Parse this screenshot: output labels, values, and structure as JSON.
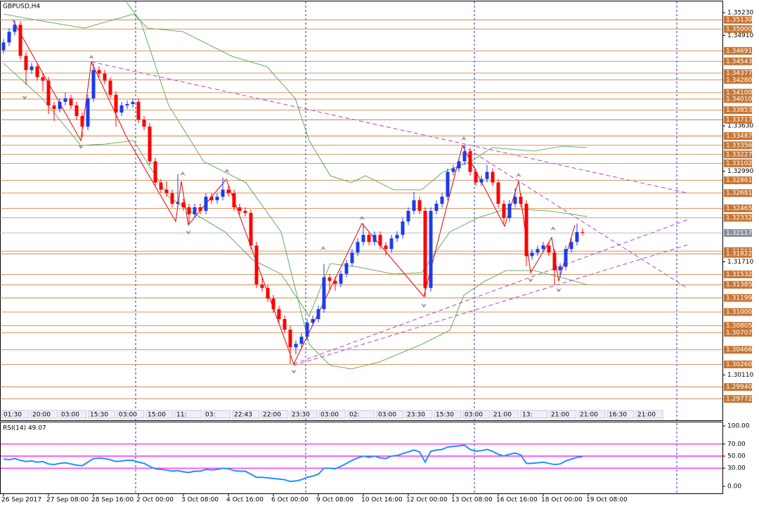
{
  "chart_data": {
    "type": "candlestick",
    "title": "GBPUSD,H4",
    "x": [
      "26 Sep 2017",
      null,
      null,
      null,
      null,
      null,
      null,
      null,
      "27 Sep 08:00",
      null,
      null,
      null,
      null,
      null,
      null,
      null,
      "28 Sep 16:00",
      null,
      null,
      null,
      null,
      null,
      null,
      null,
      "2 Oct 00:00",
      null,
      null,
      null,
      null,
      null,
      null,
      null,
      "3 Oct 08:00",
      null,
      null,
      null,
      null,
      null,
      null,
      null,
      "4 Oct 16:00",
      null,
      null,
      null,
      null,
      null,
      null,
      null,
      "6 Oct 00:00",
      null,
      null,
      null,
      null,
      null,
      null,
      null,
      "9 Oct 08:00",
      null,
      null,
      null,
      null,
      null,
      null,
      null,
      "10 Oct 16:00",
      null,
      null,
      null,
      null,
      null,
      null,
      null,
      "12 Oct 00:00",
      null,
      null,
      null,
      null,
      null,
      null,
      null,
      "13 Oct 08:00",
      null,
      null,
      null,
      null,
      null,
      null,
      null,
      "16 Oct 16:00",
      null,
      null,
      null,
      null,
      null,
      null,
      null,
      "18 Oct 00:00",
      null,
      null,
      null,
      null,
      null,
      null,
      null,
      "19 Oct 08:00",
      null,
      null,
      null
    ],
    "candles": [
      [
        1.347,
        1.3486,
        1.3465,
        1.3481
      ],
      [
        1.3481,
        1.3501,
        1.3476,
        1.3496
      ],
      [
        1.3496,
        1.3512,
        1.3491,
        1.3506
      ],
      [
        1.3506,
        1.3511,
        1.3457,
        1.3462
      ],
      [
        1.3462,
        1.3467,
        1.3421,
        1.3442
      ],
      [
        1.3442,
        1.3452,
        1.3437,
        1.3447
      ],
      [
        1.3447,
        1.3452,
        1.3427,
        1.3432
      ],
      [
        1.3432,
        1.3437,
        1.3412,
        1.3427
      ],
      [
        1.3427,
        1.3432,
        1.338,
        1.3392
      ],
      [
        1.3392,
        1.3397,
        1.337,
        1.3387
      ],
      [
        1.3387,
        1.3402,
        1.3382,
        1.3397
      ],
      [
        1.3397,
        1.341,
        1.3392,
        1.3402
      ],
      [
        1.3402,
        1.3407,
        1.3387,
        1.3392
      ],
      [
        1.3392,
        1.3397,
        1.3372,
        1.3377
      ],
      [
        1.3377,
        1.3382,
        1.3347,
        1.3362
      ],
      [
        1.3362,
        1.3407,
        1.3357,
        1.3402
      ],
      [
        1.3402,
        1.3451,
        1.3397,
        1.3442
      ],
      [
        1.3442,
        1.3447,
        1.3432,
        1.3437
      ],
      [
        1.3437,
        1.3442,
        1.3422,
        1.3427
      ],
      [
        1.3427,
        1.3432,
        1.3402,
        1.3407
      ],
      [
        1.3407,
        1.3412,
        1.3362,
        1.3382
      ],
      [
        1.3382,
        1.3397,
        1.3377,
        1.3392
      ],
      [
        1.3392,
        1.3399,
        1.3387,
        1.3394
      ],
      [
        1.3394,
        1.3402,
        1.3389,
        1.3397
      ],
      [
        1.3397,
        1.3402,
        1.3367,
        1.3372
      ],
      [
        1.3372,
        1.3377,
        1.3357,
        1.3362
      ],
      [
        1.3362,
        1.3367,
        1.3308,
        1.3313
      ],
      [
        1.3313,
        1.3318,
        1.3278,
        1.3283
      ],
      [
        1.3283,
        1.3288,
        1.3268,
        1.3273
      ],
      [
        1.3273,
        1.3285,
        1.3263,
        1.3268
      ],
      [
        1.3268,
        1.3273,
        1.3248,
        1.3253
      ],
      [
        1.3253,
        1.3295,
        1.3248,
        1.3255
      ],
      [
        1.3255,
        1.326,
        1.3243,
        1.3248
      ],
      [
        1.3248,
        1.3253,
        1.3225,
        1.3238
      ],
      [
        1.3238,
        1.3253,
        1.3233,
        1.3248
      ],
      [
        1.3248,
        1.3253,
        1.3238,
        1.3243
      ],
      [
        1.3243,
        1.3268,
        1.3238,
        1.3263
      ],
      [
        1.3263,
        1.3268,
        1.3253,
        1.3258
      ],
      [
        1.3258,
        1.3268,
        1.3253,
        1.3263
      ],
      [
        1.3263,
        1.329,
        1.3258,
        1.3273
      ],
      [
        1.3273,
        1.3278,
        1.3263,
        1.3268
      ],
      [
        1.3268,
        1.3273,
        1.3243,
        1.3248
      ],
      [
        1.3248,
        1.3253,
        1.3238,
        1.3243
      ],
      [
        1.3243,
        1.3248,
        1.3235,
        1.324
      ],
      [
        1.324,
        1.3245,
        1.3189,
        1.3194
      ],
      [
        1.3194,
        1.3199,
        1.3134,
        1.3139
      ],
      [
        1.3139,
        1.315,
        1.3129,
        1.3134
      ],
      [
        1.3134,
        1.3139,
        1.3114,
        1.3119
      ],
      [
        1.3119,
        1.3124,
        1.3099,
        1.3104
      ],
      [
        1.3104,
        1.3109,
        1.3085,
        1.309
      ],
      [
        1.309,
        1.3095,
        1.307,
        1.3075
      ],
      [
        1.3075,
        1.308,
        1.3027,
        1.305
      ],
      [
        1.305,
        1.306,
        1.304,
        1.3055
      ],
      [
        1.3055,
        1.307,
        1.305,
        1.3065
      ],
      [
        1.3065,
        1.309,
        1.306,
        1.3085
      ],
      [
        1.3085,
        1.3095,
        1.308,
        1.309
      ],
      [
        1.309,
        1.3109,
        1.3085,
        1.3104
      ],
      [
        1.3104,
        1.3168,
        1.3099,
        1.3149
      ],
      [
        1.3149,
        1.3154,
        1.313,
        1.3144
      ],
      [
        1.3144,
        1.315,
        1.313,
        1.314
      ],
      [
        1.314,
        1.3159,
        1.3135,
        1.3154
      ],
      [
        1.3154,
        1.3174,
        1.3149,
        1.3169
      ],
      [
        1.3169,
        1.3189,
        1.3164,
        1.3184
      ],
      [
        1.3184,
        1.3204,
        1.3179,
        1.3199
      ],
      [
        1.3199,
        1.3225,
        1.3194,
        1.3209
      ],
      [
        1.3209,
        1.3214,
        1.3194,
        1.3199
      ],
      [
        1.3199,
        1.3214,
        1.3194,
        1.3209
      ],
      [
        1.3209,
        1.3214,
        1.3189,
        1.3194
      ],
      [
        1.3194,
        1.3199,
        1.318,
        1.3189
      ],
      [
        1.3189,
        1.3209,
        1.3184,
        1.3204
      ],
      [
        1.3204,
        1.3214,
        1.3199,
        1.3209
      ],
      [
        1.3209,
        1.3233,
        1.3204,
        1.3228
      ],
      [
        1.3228,
        1.3248,
        1.3223,
        1.3243
      ],
      [
        1.3243,
        1.327,
        1.3238,
        1.3258
      ],
      [
        1.3258,
        1.3263,
        1.3238,
        1.3243
      ],
      [
        1.3243,
        1.3248,
        1.3121,
        1.3134
      ],
      [
        1.3134,
        1.3248,
        1.3129,
        1.3243
      ],
      [
        1.3243,
        1.3258,
        1.3238,
        1.3253
      ],
      [
        1.3253,
        1.3268,
        1.3248,
        1.3263
      ],
      [
        1.3263,
        1.3303,
        1.3258,
        1.3298
      ],
      [
        1.3298,
        1.3308,
        1.3293,
        1.3303
      ],
      [
        1.3303,
        1.3318,
        1.3298,
        1.3313
      ],
      [
        1.3313,
        1.3336,
        1.3308,
        1.3327
      ],
      [
        1.3327,
        1.3332,
        1.3293,
        1.3298
      ],
      [
        1.3298,
        1.3303,
        1.3278,
        1.3283
      ],
      [
        1.3283,
        1.3293,
        1.3278,
        1.3288
      ],
      [
        1.3288,
        1.3308,
        1.3283,
        1.3298
      ],
      [
        1.3298,
        1.3303,
        1.3278,
        1.3283
      ],
      [
        1.3283,
        1.3288,
        1.3248,
        1.3253
      ],
      [
        1.3253,
        1.3258,
        1.3225,
        1.3233
      ],
      [
        1.3233,
        1.3258,
        1.3228,
        1.3253
      ],
      [
        1.3253,
        1.3275,
        1.3248,
        1.3263
      ],
      [
        1.3263,
        1.3268,
        1.3248,
        1.3253
      ],
      [
        1.3253,
        1.3258,
        1.3165,
        1.3179
      ],
      [
        1.3179,
        1.3189,
        1.3174,
        1.3184
      ],
      [
        1.3184,
        1.3194,
        1.3179,
        1.3189
      ],
      [
        1.3189,
        1.3199,
        1.3184,
        1.3194
      ],
      [
        1.3194,
        1.3199,
        1.3179,
        1.3184
      ],
      [
        1.3184,
        1.3189,
        1.3138,
        1.3159
      ],
      [
        1.3159,
        1.3169,
        1.315,
        1.3164
      ],
      [
        1.3164,
        1.3194,
        1.3159,
        1.3189
      ],
      [
        1.3189,
        1.3204,
        1.3184,
        1.3199
      ],
      [
        1.3199,
        1.3225,
        1.3194,
        1.3213
      ],
      [
        1.3213,
        1.3218,
        1.3208,
        1.3212
      ]
    ],
    "up_color": "#1c3cf0",
    "down_color": "#ff0000",
    "ylim": [
      1.2947,
      1.3539
    ],
    "yticks": [
      {
        "value": 1.3523,
        "label": "1.35230"
      },
      {
        "value": 1.3491,
        "label": "1.34910"
      },
      {
        "value": 1.3363,
        "label": "1.33630"
      },
      {
        "value": 1.3299,
        "label": "1.32990"
      },
      {
        "value": 1.3171,
        "label": "1.31710"
      },
      {
        "value": 1.3011,
        "label": "1.30110"
      }
    ],
    "levels": [
      {
        "value": 1.3513,
        "label": "1.35130"
      },
      {
        "value": 1.35,
        "label": "1.35000"
      },
      1.34691,
      1.34543,
      1.34377,
      {
        "value": 1.3428,
        "label": "1.34280"
      },
      {
        "value": 1.341,
        "label": "1.34100"
      },
      {
        "value": 1.3401,
        "label": "1.34010"
      },
      1.33853,
      1.33717,
      1.33487,
      1.33356,
      1.33227,
      1.33102,
      1.32861,
      1.32681,
      1.32465,
      1.32332,
      1.31861,
      1.31822,
      1.31532,
      1.31385,
      1.31199,
      {
        "value": 1.31,
        "label": "1.31000"
      },
      1.30805,
      1.30707,
      1.30466,
      {
        "value": 1.3026,
        "label": "1.30260"
      },
      {
        "value": 1.2994,
        "label": "1.29940"
      },
      1.29772
    ],
    "level_color": "#c87533",
    "current_price": 1.32117,
    "session_labels": [
      "01:30",
      "20:00",
      "03:00",
      "15:30",
      "03:00",
      "15:00",
      "11:",
      "03:",
      "22:43",
      "22:00",
      "23:30",
      "03:00",
      "02:",
      "03:00",
      "23:30",
      "15:30",
      "03:00",
      "21:00",
      "13:",
      "21:00",
      "21:00",
      "16:30",
      "21:00"
    ],
    "rsi": {
      "title": "RSI(14) 49.07",
      "color": "#1e90ff",
      "values": [
        45,
        44,
        46,
        43,
        41,
        42,
        40,
        41,
        37,
        36,
        38,
        39,
        37,
        35,
        34,
        40,
        46,
        47,
        46,
        44,
        41,
        42,
        43,
        43,
        40,
        38,
        33,
        29,
        28,
        27,
        25,
        26,
        24,
        23,
        25,
        25,
        28,
        27,
        28,
        30,
        29,
        26,
        25,
        25,
        20,
        15,
        15,
        14,
        13,
        12,
        11,
        8,
        9,
        11,
        15,
        17,
        20,
        30,
        30,
        29,
        33,
        38,
        43,
        47,
        50,
        48,
        50,
        47,
        46,
        50,
        51,
        54,
        57,
        60,
        57,
        40,
        58,
        60,
        61,
        65,
        66,
        67,
        68,
        61,
        58,
        59,
        61,
        58,
        53,
        50,
        53,
        55,
        52,
        38,
        38,
        39,
        40,
        38,
        36,
        37,
        42,
        45,
        48,
        49.07
      ],
      "ylim": [
        -11.6,
        105.8
      ],
      "yticks": [
        {
          "value": 100,
          "label": "100.00"
        },
        {
          "value": 70,
          "label": "70.00"
        },
        {
          "value": 50,
          "label": "50.00"
        },
        {
          "value": 30,
          "label": "30.00"
        },
        {
          "value": 0,
          "label": "0.00"
        }
      ],
      "levels": [
        70,
        50,
        30
      ],
      "level_color": "#ff00ff"
    }
  }
}
